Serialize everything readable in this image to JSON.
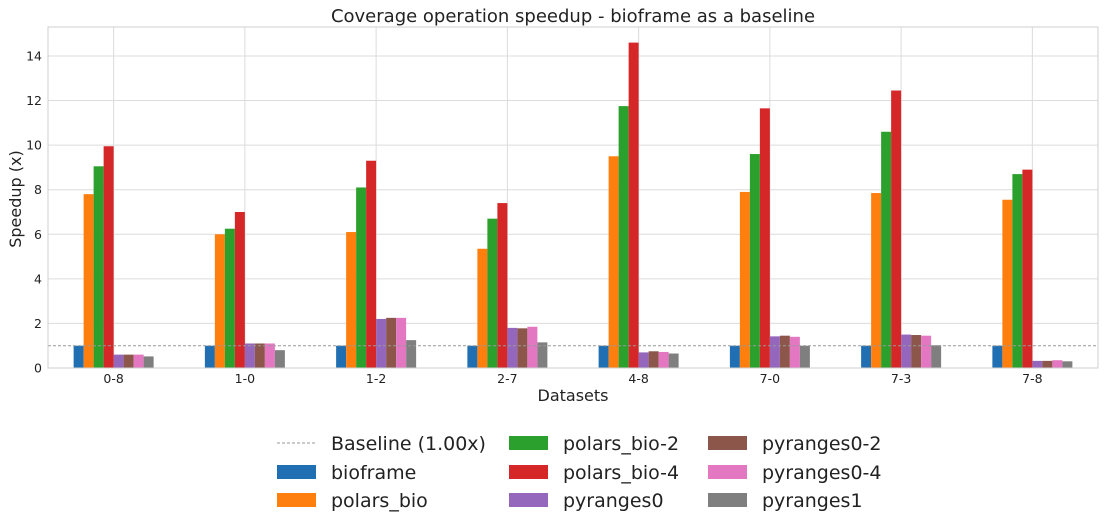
{
  "chart_data": {
    "type": "bar",
    "title": "Coverage operation speedup - bioframe as a baseline",
    "xlabel": "Datasets",
    "ylabel": "Speedup (x)",
    "ylim": [
      0,
      15.3
    ],
    "yticks": [
      "0",
      "2",
      "4",
      "6",
      "8",
      "10",
      "12",
      "14"
    ],
    "grid": true,
    "categories": [
      "0-8",
      "1-0",
      "1-2",
      "2-7",
      "4-8",
      "7-0",
      "7-3",
      "7-8"
    ],
    "baseline": {
      "label": "Baseline (1.00x)",
      "value": 1.0,
      "color": "#999999"
    },
    "series": [
      {
        "name": "bioframe",
        "color": "#1f6fb2",
        "values": [
          1.0,
          1.0,
          1.0,
          1.0,
          1.0,
          1.0,
          1.0,
          1.0
        ]
      },
      {
        "name": "polars_bio",
        "color": "#ff7f0e",
        "values": [
          7.8,
          6.0,
          6.1,
          5.35,
          9.5,
          7.9,
          7.85,
          7.55
        ]
      },
      {
        "name": "polars_bio-2",
        "color": "#2ca02c",
        "values": [
          9.05,
          6.25,
          8.1,
          6.7,
          11.75,
          9.6,
          10.6,
          8.7
        ]
      },
      {
        "name": "polars_bio-4",
        "color": "#d62728",
        "values": [
          9.95,
          7.0,
          9.3,
          7.4,
          14.6,
          11.65,
          12.45,
          8.9
        ]
      },
      {
        "name": "pyranges0",
        "color": "#9467bd",
        "values": [
          0.6,
          1.1,
          2.2,
          1.8,
          0.7,
          1.42,
          1.5,
          0.32
        ]
      },
      {
        "name": "pyranges0-2",
        "color": "#8c564b",
        "values": [
          0.6,
          1.1,
          2.25,
          1.78,
          0.75,
          1.45,
          1.48,
          0.32
        ]
      },
      {
        "name": "pyranges0-4",
        "color": "#e377c2",
        "values": [
          0.6,
          1.1,
          2.25,
          1.85,
          0.72,
          1.4,
          1.45,
          0.35
        ]
      },
      {
        "name": "pyranges1",
        "color": "#7f7f7f",
        "values": [
          0.52,
          0.8,
          1.25,
          1.15,
          0.65,
          1.0,
          1.02,
          0.3
        ]
      }
    ]
  }
}
